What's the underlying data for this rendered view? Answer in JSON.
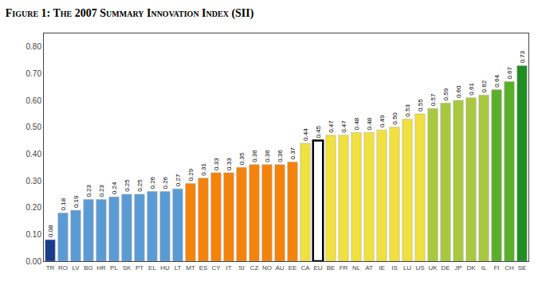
{
  "chart_data": {
    "type": "bar",
    "title": "Figure 1: The 2007 Summary Innovation Index (SII)",
    "categories": [
      "TR",
      "RO",
      "LV",
      "BG",
      "HR",
      "PL",
      "SK",
      "PT",
      "EL",
      "HU",
      "LT",
      "MT",
      "ES",
      "CY",
      "IT",
      "SI",
      "CZ",
      "NO",
      "AU",
      "EE",
      "CA",
      "EU",
      "BE",
      "FR",
      "NL",
      "AT",
      "IE",
      "IS",
      "LU",
      "US",
      "UK",
      "DE",
      "JP",
      "DK",
      "IL",
      "FI",
      "CH",
      "SE"
    ],
    "values": [
      0.08,
      0.18,
      0.19,
      0.23,
      0.23,
      0.24,
      0.25,
      0.25,
      0.26,
      0.26,
      0.27,
      0.29,
      0.31,
      0.33,
      0.33,
      0.35,
      0.36,
      0.36,
      0.36,
      0.37,
      0.44,
      0.45,
      0.47,
      0.47,
      0.48,
      0.48,
      0.49,
      0.5,
      0.53,
      0.55,
      0.57,
      0.59,
      0.6,
      0.61,
      0.62,
      0.64,
      0.67,
      0.73
    ],
    "value_labels": [
      "0.08",
      "0.18",
      "0.19",
      "0.23",
      "0.23",
      "0.24",
      "0.25",
      "0.25",
      "0.26",
      "0.26",
      "0.27",
      "0.29",
      "0.31",
      "0.33",
      "0.33",
      "0.35",
      "0.36",
      "0.36",
      "0.36",
      "0.37",
      "0.44",
      "0.45",
      "0.47",
      "0.47",
      "0.48",
      "0.48",
      "0.49",
      "0.50",
      "0.53",
      "0.55",
      "0.57",
      "0.59",
      "0.60",
      "0.61",
      "0.62",
      "0.64",
      "0.67",
      "0.73"
    ],
    "data_labels": true,
    "colors": [
      "#1a3a8a",
      "#5b9bd5",
      "#5b9bd5",
      "#5b9bd5",
      "#5b9bd5",
      "#5b9bd5",
      "#5b9bd5",
      "#5b9bd5",
      "#5b9bd5",
      "#5b9bd5",
      "#5b9bd5",
      "#f5820a",
      "#f5820a",
      "#f5820a",
      "#f5820a",
      "#f5820a",
      "#f5820a",
      "#f5820a",
      "#f5820a",
      "#f5820a",
      "#f0e040",
      "#ffffff",
      "#f0e040",
      "#f0e040",
      "#f0e040",
      "#f0e040",
      "#f0e040",
      "#f0e040",
      "#f0e040",
      "#f0e040",
      "#a8c840",
      "#a8c840",
      "#a8c840",
      "#a8c840",
      "#a8c840",
      "#5aaf28",
      "#5aaf28",
      "#228B22"
    ],
    "ylim": [
      0.0,
      0.85
    ],
    "yticks": [
      {
        "value": 0.0,
        "label": "0.00"
      },
      {
        "value": 0.1,
        "label": "0.10"
      },
      {
        "value": 0.2,
        "label": "0.20"
      },
      {
        "value": 0.3,
        "label": "0.30"
      },
      {
        "value": 0.4,
        "label": "0.40"
      },
      {
        "value": 0.5,
        "label": "0.50"
      },
      {
        "value": 0.6,
        "label": "0.60"
      },
      {
        "value": 0.7,
        "label": "0.70"
      },
      {
        "value": 0.8,
        "label": "0.80"
      }
    ],
    "grid": false
  }
}
